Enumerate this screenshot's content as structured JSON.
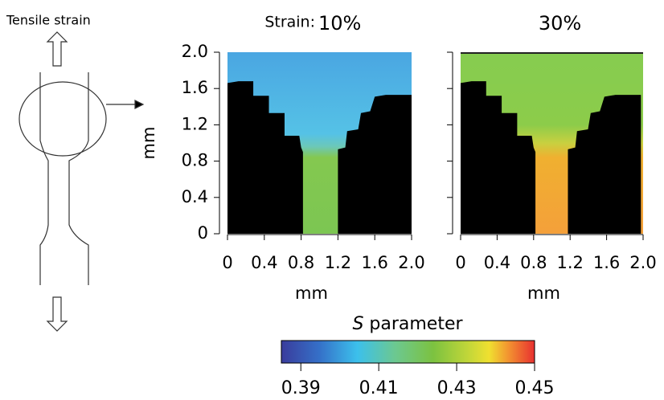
{
  "schematic": {
    "label": "Tensile strain"
  },
  "chart_data": [
    {
      "type": "heatmap",
      "title_prefix": "Strain:",
      "title": "10%",
      "xlabel": "mm",
      "ylabel": "mm",
      "xlim": [
        0,
        2
      ],
      "ylim": [
        0,
        2
      ],
      "xticks": [
        0,
        0.4,
        0.8,
        1.2,
        1.6,
        {
          "value": 2,
          "label": "2.0"
        }
      ],
      "yticks": [
        0,
        0.4,
        0.8,
        1.2,
        1.6,
        {
          "value": 2,
          "label": "2.0"
        }
      ]
    },
    {
      "type": "heatmap",
      "title": "30%",
      "xlabel": "mm",
      "xlim": [
        0,
        2
      ],
      "ylim": [
        0,
        2
      ],
      "xticks": [
        0,
        0.4,
        0.8,
        1.2,
        1.6,
        {
          "value": 2,
          "label": "2.0"
        }
      ],
      "yticks": [
        0,
        0.4,
        0.8,
        1.2,
        1.6,
        2
      ]
    }
  ],
  "colorbar": {
    "symbol": "S",
    "label": "parameter",
    "clim": [
      0.385,
      0.45
    ],
    "ticks": [
      0.39,
      0.41,
      0.43,
      0.45
    ]
  }
}
